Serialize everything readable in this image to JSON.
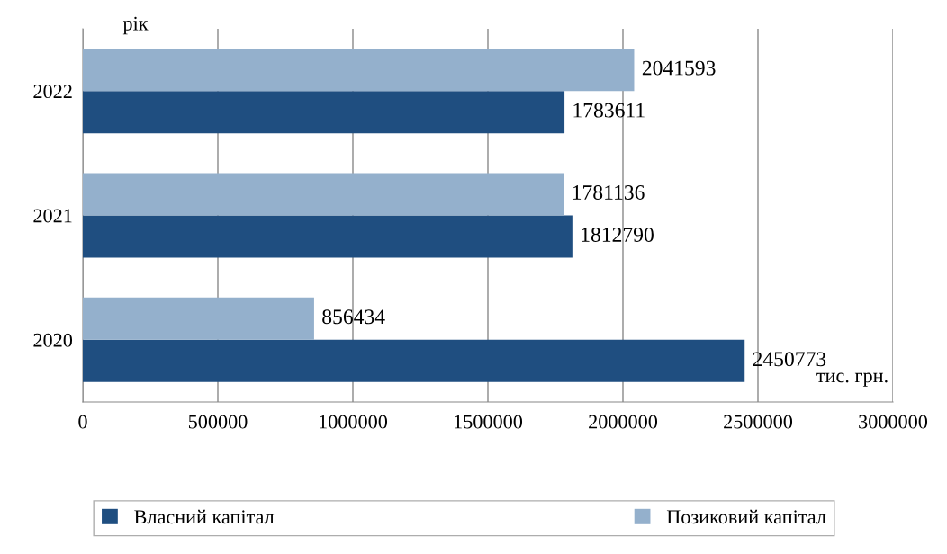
{
  "chart_data": {
    "type": "bar",
    "orientation": "horizontal",
    "xlabel": "тис. грн.",
    "ylabel": "рік",
    "categories": [
      "2022",
      "2021",
      "2020"
    ],
    "series": [
      {
        "name": "Власний капітал",
        "color": "#1f4e80",
        "values": [
          1783611,
          1812790,
          2450773
        ]
      },
      {
        "name": "Позиковий капітал",
        "color": "#94b0cc",
        "values": [
          2041593,
          1781136,
          856434
        ]
      }
    ],
    "xlim": [
      0,
      3000000
    ],
    "xticks": [
      0,
      500000,
      1000000,
      1500000,
      2000000,
      2500000,
      3000000
    ],
    "grid": "x",
    "legend": "bottom",
    "data_labels": true
  }
}
